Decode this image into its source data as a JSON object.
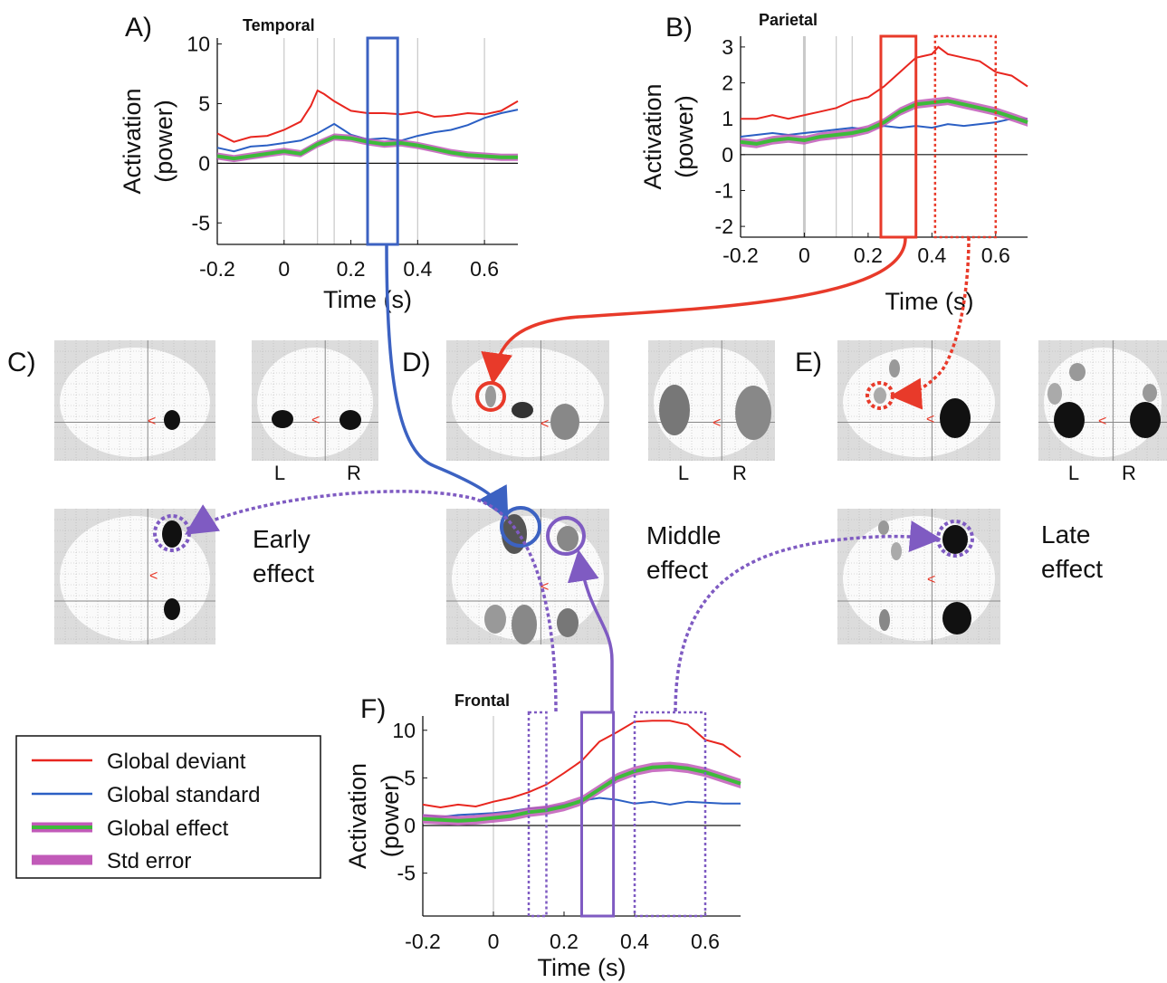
{
  "panels": {
    "A": "A)",
    "B": "B)",
    "C": "C)",
    "D": "D)",
    "E": "E)",
    "F": "F)"
  },
  "effects": {
    "early_1": "Early",
    "early_2": "effect",
    "middle_1": "Middle",
    "middle_2": "effect",
    "late_1": "Late",
    "late_2": "effect"
  },
  "hemispheres": {
    "left": "L",
    "right": "R"
  },
  "legend": {
    "items": [
      "Global deviant",
      "Global standard",
      "Global effect",
      "Std error"
    ]
  },
  "colors": {
    "deviant": "#e8261f",
    "standard": "#2b5fc4",
    "effect": "#3dbb3a",
    "stderr": "#c15ab8",
    "blue_box": "#3c62c2",
    "red_box": "#e83a2a",
    "purple_box": "#7f5bc2"
  },
  "chart_data": [
    {
      "type": "line",
      "title": "Temporal",
      "xlabel": "Time (s)",
      "ylabel": "Activation (power)",
      "xlim": [
        -0.2,
        0.7
      ],
      "ylim": [
        -6.8,
        10.5
      ],
      "xticks": [
        -0.2,
        0,
        0.2,
        0.4,
        0.6
      ],
      "xtick_labels": [
        "-0.2",
        "0",
        "0.2",
        "0.4",
        "0.6"
      ],
      "yticks": [
        -5,
        0,
        5,
        10
      ],
      "ytick_labels": [
        "-5",
        "0",
        "5",
        "10"
      ],
      "vlines": [
        0,
        0.1,
        0.15,
        0.4,
        0.6
      ],
      "highlight_boxes": [
        {
          "x0": 0.25,
          "x1": 0.34,
          "style": "solid",
          "color": "blue"
        }
      ],
      "series": [
        {
          "name": "Global deviant",
          "color": "red",
          "x": [
            -0.2,
            -0.15,
            -0.1,
            -0.05,
            0,
            0.05,
            0.08,
            0.1,
            0.12,
            0.15,
            0.2,
            0.25,
            0.3,
            0.35,
            0.4,
            0.45,
            0.5,
            0.55,
            0.6,
            0.65,
            0.7
          ],
          "y": [
            2.5,
            1.8,
            2.2,
            2.3,
            2.8,
            3.5,
            4.8,
            6.1,
            5.8,
            5.2,
            4.4,
            4.2,
            4.2,
            4.1,
            4.3,
            3.9,
            4.0,
            4.2,
            4.1,
            4.4,
            5.2
          ]
        },
        {
          "name": "Global standard",
          "color": "blue",
          "x": [
            -0.2,
            -0.15,
            -0.1,
            -0.05,
            0,
            0.05,
            0.1,
            0.15,
            0.2,
            0.25,
            0.3,
            0.35,
            0.4,
            0.45,
            0.5,
            0.55,
            0.6,
            0.65,
            0.7
          ],
          "y": [
            1.3,
            1.0,
            1.4,
            1.5,
            1.7,
            1.9,
            2.5,
            3.3,
            2.4,
            2.0,
            2.1,
            1.9,
            2.3,
            2.6,
            2.8,
            3.2,
            3.8,
            4.2,
            4.5
          ]
        },
        {
          "name": "Global effect",
          "color": "green",
          "stderr": 0.3,
          "x": [
            -0.2,
            -0.15,
            -0.1,
            -0.05,
            0,
            0.05,
            0.1,
            0.15,
            0.2,
            0.25,
            0.3,
            0.35,
            0.4,
            0.45,
            0.5,
            0.55,
            0.6,
            0.65,
            0.7
          ],
          "y": [
            0.6,
            0.4,
            0.6,
            0.8,
            1.0,
            0.8,
            1.6,
            2.2,
            2.1,
            1.8,
            1.6,
            1.7,
            1.5,
            1.2,
            0.9,
            0.7,
            0.6,
            0.5,
            0.5
          ]
        }
      ]
    },
    {
      "type": "line",
      "title": "Parietal",
      "xlabel": "Time (s)",
      "ylabel": "Activation (power)",
      "xlim": [
        -0.2,
        0.7
      ],
      "ylim": [
        -2.3,
        3.3
      ],
      "xticks": [
        -0.2,
        0,
        0.2,
        0.4,
        0.6
      ],
      "xtick_labels": [
        "-0.2",
        "0",
        "0.2",
        "0.4",
        "0.6"
      ],
      "yticks": [
        -2,
        -1,
        0,
        1,
        2,
        3
      ],
      "ytick_labels": [
        "-2",
        "-1",
        "0",
        "1",
        "2",
        "3"
      ],
      "vlines": [
        0,
        0.1,
        0.15
      ],
      "highlight_boxes": [
        {
          "x0": 0.24,
          "x1": 0.35,
          "style": "solid",
          "color": "red"
        },
        {
          "x0": 0.41,
          "x1": 0.6,
          "style": "dotted",
          "color": "red"
        }
      ],
      "series": [
        {
          "name": "Global deviant",
          "color": "red",
          "x": [
            -0.2,
            -0.15,
            -0.1,
            -0.05,
            0,
            0.05,
            0.1,
            0.15,
            0.2,
            0.25,
            0.3,
            0.35,
            0.4,
            0.42,
            0.45,
            0.5,
            0.55,
            0.6,
            0.65,
            0.7
          ],
          "y": [
            1.0,
            1.0,
            1.1,
            1.0,
            1.1,
            1.2,
            1.3,
            1.5,
            1.6,
            1.9,
            2.3,
            2.7,
            2.8,
            3.0,
            2.8,
            2.7,
            2.6,
            2.3,
            2.2,
            1.9
          ]
        },
        {
          "name": "Global standard",
          "color": "blue",
          "x": [
            -0.2,
            -0.15,
            -0.1,
            -0.05,
            0,
            0.05,
            0.1,
            0.15,
            0.2,
            0.25,
            0.3,
            0.35,
            0.4,
            0.45,
            0.5,
            0.55,
            0.6,
            0.65,
            0.7
          ],
          "y": [
            0.5,
            0.55,
            0.6,
            0.55,
            0.6,
            0.65,
            0.7,
            0.75,
            0.7,
            0.8,
            0.75,
            0.8,
            0.75,
            0.85,
            0.8,
            0.85,
            0.9,
            1.0,
            1.0
          ]
        },
        {
          "name": "Global effect",
          "color": "green",
          "stderr": 0.12,
          "x": [
            -0.2,
            -0.15,
            -0.1,
            -0.05,
            0,
            0.05,
            0.1,
            0.15,
            0.2,
            0.25,
            0.3,
            0.35,
            0.4,
            0.45,
            0.5,
            0.55,
            0.6,
            0.65,
            0.7
          ],
          "y": [
            0.35,
            0.3,
            0.4,
            0.45,
            0.4,
            0.5,
            0.55,
            0.6,
            0.7,
            0.9,
            1.2,
            1.4,
            1.45,
            1.5,
            1.4,
            1.3,
            1.2,
            1.05,
            0.9
          ]
        }
      ]
    },
    {
      "type": "line",
      "title": "Frontal",
      "xlabel": "Time (s)",
      "ylabel": "Activation (power)",
      "xlim": [
        -0.2,
        0.7
      ],
      "ylim": [
        -9.5,
        11.5
      ],
      "xticks": [
        -0.2,
        0,
        0.2,
        0.4,
        0.6
      ],
      "xtick_labels": [
        "-0.2",
        "0",
        "0.2",
        "0.4",
        "0.6"
      ],
      "yticks": [
        -5,
        0,
        5,
        10
      ],
      "ytick_labels": [
        "-5",
        "0",
        "5",
        "10"
      ],
      "vlines": [
        0
      ],
      "highlight_boxes": [
        {
          "x0": 0.1,
          "x1": 0.15,
          "style": "dotted",
          "color": "purple"
        },
        {
          "x0": 0.25,
          "x1": 0.34,
          "style": "solid",
          "color": "purple"
        },
        {
          "x0": 0.4,
          "x1": 0.6,
          "style": "dotted",
          "color": "purple"
        }
      ],
      "series": [
        {
          "name": "Global deviant",
          "color": "red",
          "x": [
            -0.2,
            -0.15,
            -0.1,
            -0.05,
            0,
            0.05,
            0.1,
            0.15,
            0.2,
            0.25,
            0.3,
            0.35,
            0.4,
            0.45,
            0.5,
            0.55,
            0.6,
            0.65,
            0.7
          ],
          "y": [
            2.2,
            1.9,
            2.2,
            2.0,
            2.5,
            2.9,
            3.5,
            4.3,
            5.5,
            6.8,
            8.8,
            9.8,
            10.9,
            11.0,
            11.0,
            10.6,
            9.0,
            8.5,
            7.2
          ]
        },
        {
          "name": "Global standard",
          "color": "blue",
          "x": [
            -0.2,
            -0.15,
            -0.1,
            -0.05,
            0,
            0.05,
            0.1,
            0.15,
            0.2,
            0.25,
            0.3,
            0.35,
            0.4,
            0.45,
            0.5,
            0.55,
            0.6,
            0.65,
            0.7
          ],
          "y": [
            1.1,
            0.9,
            1.1,
            1.2,
            1.3,
            1.5,
            1.8,
            1.9,
            2.2,
            2.6,
            2.9,
            2.7,
            2.3,
            2.5,
            2.2,
            2.5,
            2.4,
            2.3,
            2.3
          ]
        },
        {
          "name": "Global effect",
          "color": "green",
          "stderr": 0.5,
          "x": [
            -0.2,
            -0.15,
            -0.1,
            -0.05,
            0,
            0.05,
            0.1,
            0.15,
            0.2,
            0.25,
            0.3,
            0.35,
            0.4,
            0.45,
            0.5,
            0.55,
            0.6,
            0.65,
            0.7
          ],
          "y": [
            0.7,
            0.6,
            0.5,
            0.6,
            0.8,
            1.0,
            1.4,
            1.6,
            2.0,
            2.6,
            3.8,
            5.0,
            5.7,
            6.1,
            6.2,
            6.0,
            5.6,
            5.0,
            4.4
          ]
        }
      ]
    }
  ]
}
